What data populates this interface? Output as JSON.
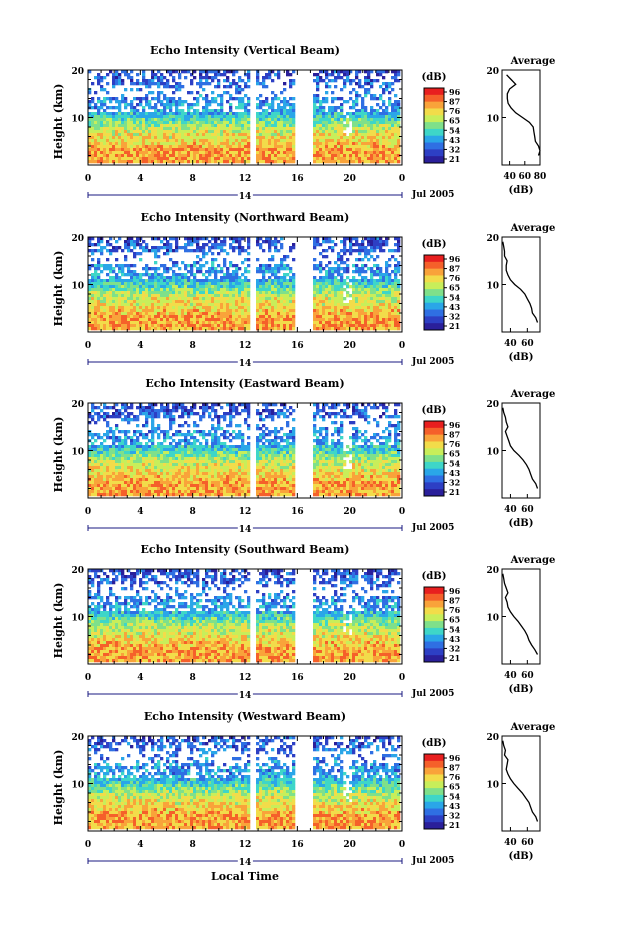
{
  "figure": {
    "global_xlabel": "Local Time",
    "day_label": "14",
    "date_label": "Jul 2005",
    "ylabel": "Height (km)",
    "avg_title": "Average",
    "avg_xlabel": "(dB)",
    "cbar_label": "(dB)"
  },
  "colorbar": {
    "ticks": [
      "96",
      "87",
      "76",
      "65",
      "54",
      "43",
      "32",
      "21"
    ],
    "colors": [
      "#e81f1f",
      "#f5602a",
      "#f9a33a",
      "#f2dc4a",
      "#c8ee5a",
      "#7fe08a",
      "#3ed6c8",
      "#2aa6e8",
      "#2f6fe3",
      "#2d3fc4",
      "#2a1f9a"
    ]
  },
  "chart_data": [
    {
      "type": "heatmap",
      "title": "Echo Intensity (Vertical Beam)",
      "xlabel": "Local Time",
      "ylabel": "Height (km)",
      "x_ticks": [
        "0",
        "4",
        "8",
        "12",
        "16",
        "20",
        "0"
      ],
      "y_ticks": [
        "20",
        "10"
      ],
      "xlim": [
        0,
        24
      ],
      "ylim": [
        0,
        20
      ],
      "data_gaps_hours": [
        [
          12.5,
          13.0
        ],
        [
          16.0,
          17.2
        ]
      ],
      "average_profile": {
        "xlabel": "(dB)",
        "x_ticks": [
          "40",
          "60",
          "80"
        ],
        "y_ticks": [
          "20",
          "10"
        ],
        "xlim": [
          30,
          80
        ],
        "height_km": [
          2,
          3,
          4,
          5,
          6,
          7,
          8,
          9,
          10,
          11,
          12,
          13,
          14,
          15,
          16,
          17,
          18,
          19
        ],
        "value_db": [
          78,
          80,
          78,
          74,
          73,
          72,
          71,
          66,
          57,
          48,
          42,
          38,
          37,
          37,
          40,
          48,
          42,
          36
        ]
      }
    },
    {
      "type": "heatmap",
      "title": "Echo Intensity (Northward Beam)",
      "xlabel": "Local Time",
      "ylabel": "Height (km)",
      "x_ticks": [
        "0",
        "4",
        "8",
        "12",
        "16",
        "20",
        "0"
      ],
      "y_ticks": [
        "20",
        "10"
      ],
      "xlim": [
        0,
        24
      ],
      "ylim": [
        0,
        20
      ],
      "data_gaps_hours": [
        [
          12.5,
          13.0
        ],
        [
          16.0,
          17.2
        ]
      ],
      "average_profile": {
        "xlabel": "(dB)",
        "x_ticks": [
          "40",
          "60"
        ],
        "y_ticks": [
          "20",
          "10"
        ],
        "xlim": [
          30,
          75
        ],
        "height_km": [
          2,
          3,
          4,
          5,
          6,
          7,
          8,
          9,
          10,
          11,
          12,
          13,
          14,
          15,
          16,
          17,
          18,
          19
        ],
        "value_db": [
          72,
          70,
          66,
          65,
          63,
          60,
          57,
          52,
          45,
          40,
          37,
          35,
          35,
          36,
          33,
          33,
          32,
          31
        ]
      }
    },
    {
      "type": "heatmap",
      "title": "Echo Intensity (Eastward Beam)",
      "xlabel": "Local Time",
      "ylabel": "Height (km)",
      "x_ticks": [
        "0",
        "4",
        "8",
        "12",
        "16",
        "20",
        "0"
      ],
      "y_ticks": [
        "20",
        "10"
      ],
      "xlim": [
        0,
        24
      ],
      "ylim": [
        0,
        20
      ],
      "data_gaps_hours": [
        [
          12.5,
          13.0
        ],
        [
          16.0,
          17.2
        ]
      ],
      "average_profile": {
        "xlabel": "(dB)",
        "x_ticks": [
          "40",
          "60"
        ],
        "y_ticks": [
          "20",
          "10"
        ],
        "xlim": [
          30,
          75
        ],
        "height_km": [
          2,
          3,
          4,
          5,
          6,
          7,
          8,
          9,
          10,
          11,
          12,
          13,
          14,
          15,
          16,
          17,
          18,
          19
        ],
        "value_db": [
          72,
          70,
          66,
          64,
          62,
          59,
          55,
          50,
          44,
          40,
          38,
          36,
          34,
          37,
          35,
          34,
          32,
          31
        ]
      }
    },
    {
      "type": "heatmap",
      "title": "Echo Intensity (Southward Beam)",
      "xlabel": "Local Time",
      "ylabel": "Height (km)",
      "x_ticks": [
        "0",
        "4",
        "8",
        "12",
        "16",
        "20",
        "0"
      ],
      "y_ticks": [
        "20",
        "10"
      ],
      "xlim": [
        0,
        24
      ],
      "ylim": [
        0,
        20
      ],
      "data_gaps_hours": [
        [
          12.5,
          13.0
        ],
        [
          16.0,
          17.2
        ]
      ],
      "average_profile": {
        "xlabel": "(dB)",
        "x_ticks": [
          "40",
          "60"
        ],
        "y_ticks": [
          "20",
          "10"
        ],
        "xlim": [
          30,
          75
        ],
        "height_km": [
          2,
          3,
          4,
          5,
          6,
          7,
          8,
          9,
          10,
          11,
          12,
          13,
          14,
          15,
          16,
          17,
          18,
          19
        ],
        "value_db": [
          72,
          69,
          65,
          62,
          60,
          57,
          53,
          49,
          44,
          40,
          37,
          36,
          34,
          37,
          35,
          33,
          32,
          31
        ]
      }
    },
    {
      "type": "heatmap",
      "title": "Echo Intensity (Westward Beam)",
      "xlabel": "Local Time",
      "ylabel": "Height (km)",
      "x_ticks": [
        "0",
        "4",
        "8",
        "12",
        "16",
        "20",
        "0"
      ],
      "y_ticks": [
        "20",
        "10"
      ],
      "xlim": [
        0,
        24
      ],
      "ylim": [
        0,
        20
      ],
      "data_gaps_hours": [
        [
          12.5,
          13.0
        ],
        [
          16.0,
          17.2
        ]
      ],
      "average_profile": {
        "xlabel": "(dB)",
        "x_ticks": [
          "40",
          "60"
        ],
        "y_ticks": [
          "20",
          "10"
        ],
        "xlim": [
          30,
          75
        ],
        "height_km": [
          2,
          3,
          4,
          5,
          6,
          7,
          8,
          9,
          10,
          11,
          12,
          13,
          14,
          15,
          16,
          17,
          18,
          19
        ],
        "value_db": [
          72,
          70,
          66,
          64,
          62,
          58,
          54,
          49,
          44,
          40,
          37,
          35,
          36,
          37,
          33,
          34,
          32,
          31
        ]
      }
    }
  ]
}
